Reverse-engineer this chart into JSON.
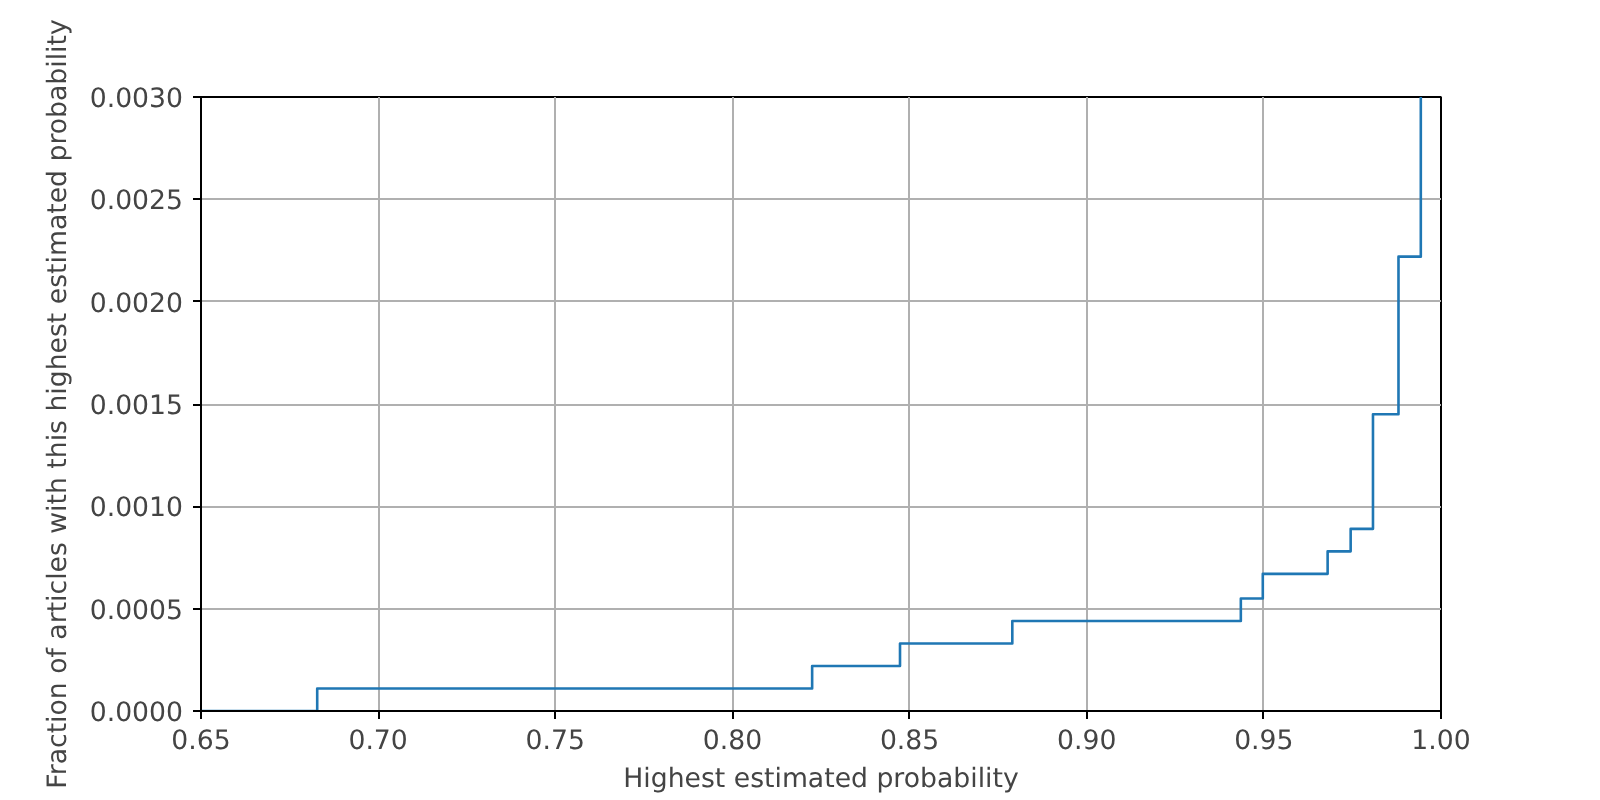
{
  "chart_data": {
    "type": "step",
    "xlabel": "Highest estimated probability",
    "ylabel": "Fraction of articles with this highest estimated probability",
    "x": [
      0.65,
      0.6828,
      0.8225,
      0.8473,
      0.879,
      0.9435,
      0.9497,
      0.968,
      0.9745,
      0.9808,
      0.988,
      0.9943
    ],
    "series": [
      {
        "color": "#1f77b4",
        "values": [
          0,
          0.00011,
          0.00022,
          0.00033,
          0.00044,
          0.00055,
          0.00067,
          0.00078,
          0.00089,
          0.00145,
          0.00222,
          0.003
        ]
      }
    ],
    "xlim": [
      0.65,
      1.0
    ],
    "xticks": [
      {
        "value": 0.65,
        "label": "0.65"
      },
      {
        "value": 0.7,
        "label": "0.70"
      },
      {
        "value": 0.75,
        "label": "0.75"
      },
      {
        "value": 0.8,
        "label": "0.80"
      },
      {
        "value": 0.85,
        "label": "0.85"
      },
      {
        "value": 0.9,
        "label": "0.90"
      },
      {
        "value": 0.95,
        "label": "0.95"
      },
      {
        "value": 1.0,
        "label": "1.00"
      }
    ],
    "ylim": [
      0,
      0.003
    ],
    "yticks": [
      {
        "value": 0,
        "label": "0.0000"
      },
      {
        "value": 0.0005,
        "label": "0.0005"
      },
      {
        "value": 0.001,
        "label": "0.0010"
      },
      {
        "value": 0.0015,
        "label": "0.0015"
      },
      {
        "value": 0.002,
        "label": "0.0020"
      },
      {
        "value": 0.0025,
        "label": "0.0025"
      },
      {
        "value": 0.003,
        "label": "0.0030"
      }
    ],
    "grid": true
  }
}
